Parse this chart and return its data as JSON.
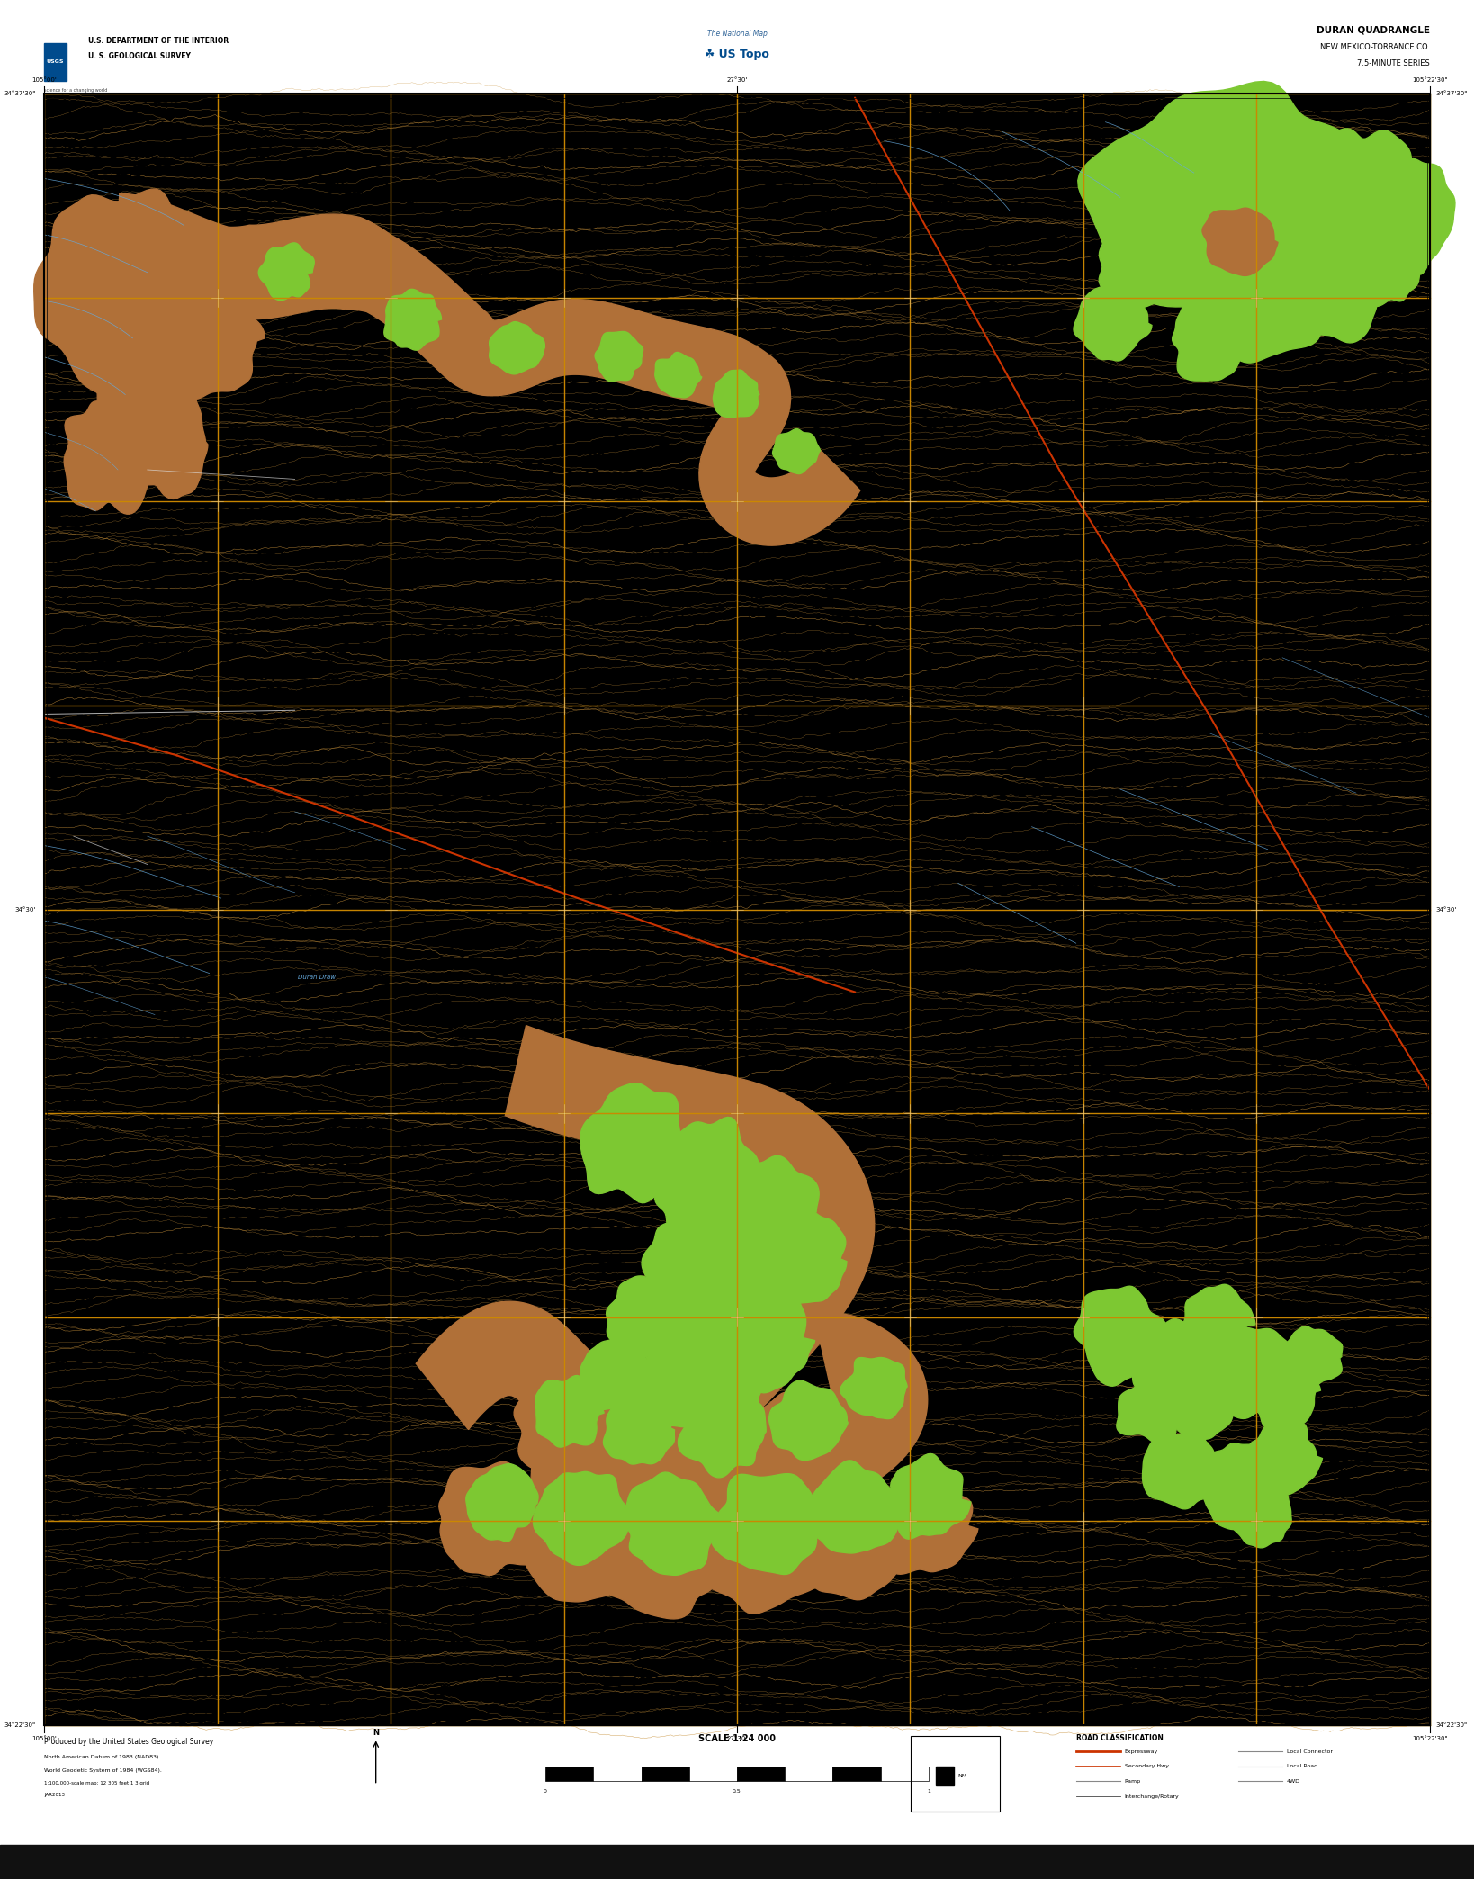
{
  "title": "DURAN QUADRANGLE",
  "subtitle1": "NEW MEXICO-TORRANCE CO.",
  "subtitle2": "7.5-MINUTE SERIES",
  "agency_line1": "U.S. DEPARTMENT OF THE INTERIOR",
  "agency_line2": "U. S. GEOLOGICAL SURVEY",
  "scale_text": "SCALE 1:24 000",
  "map_bg": "#000000",
  "outer_bg": "#ffffff",
  "contour_color": "#c8913a",
  "grid_color": "#cc8800",
  "veg_green": "#7dc832",
  "veg_brown": "#b07038",
  "water_blue": "#66aadd",
  "road_red": "#cc3300",
  "road_white": "#dddddd",
  "fig_width": 16.38,
  "fig_height": 20.88,
  "dpi": 100,
  "ml": 0.03,
  "mr": 0.97,
  "mb": 0.082,
  "mt": 0.95
}
